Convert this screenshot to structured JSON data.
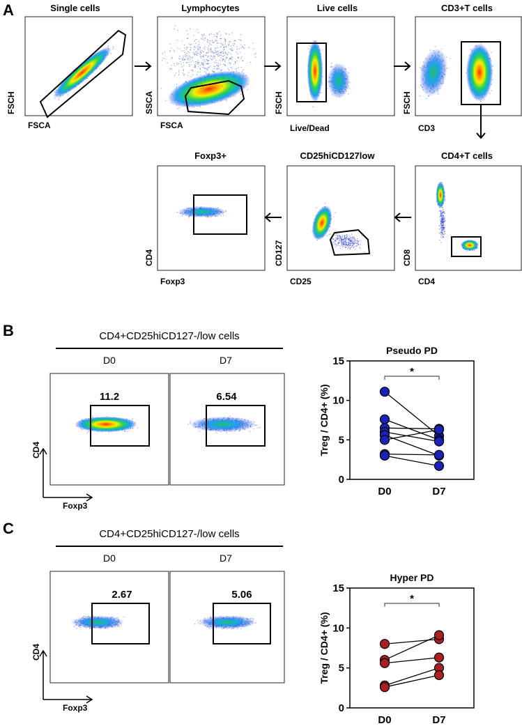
{
  "panel_a": {
    "letter": "A",
    "plots": [
      {
        "key": "single",
        "title": "Single cells",
        "xlabel": "FSCA",
        "ylabel": "FSCH"
      },
      {
        "key": "lymph",
        "title": "Lymphocytes",
        "xlabel": "FSCA",
        "ylabel": "SSCA"
      },
      {
        "key": "live",
        "title": "Live cells",
        "xlabel": "Live/Dead",
        "ylabel": "FSCH"
      },
      {
        "key": "cd3",
        "title": "CD3+T cells",
        "xlabel": "CD3",
        "ylabel": "FSCH"
      },
      {
        "key": "foxp3",
        "title": "Foxp3+",
        "xlabel": "Foxp3",
        "ylabel": "CD4"
      },
      {
        "key": "cd25",
        "title": "CD25hiCD127low",
        "xlabel": "CD25",
        "ylabel": "CD127"
      },
      {
        "key": "cd4",
        "title": "CD4+T cells",
        "xlabel": "CD4",
        "ylabel": "CD8"
      }
    ]
  },
  "panel_b": {
    "letter": "B",
    "group_title": "CD4+CD25hiCD127-/low  cells",
    "day0_label": "D0",
    "day7_label": "D7",
    "pct_d0": "11.2",
    "pct_d7": "6.54",
    "xlabel": "Foxp3",
    "ylabel": "CD4"
  },
  "panel_c": {
    "letter": "C",
    "group_title": "CD4+CD25hiCD127-/low  cells",
    "day0_label": "D0",
    "day7_label": "D7",
    "pct_d0": "2.67",
    "pct_d7": "5.06",
    "xlabel": "Foxp3",
    "ylabel": "CD4"
  },
  "chart_data": [
    {
      "type": "scatter",
      "title": "Pseudo PD",
      "ylabel": "Treg / CD4+ (%)",
      "categories": [
        "D0",
        "D7"
      ],
      "ylim": [
        0,
        15
      ],
      "yticks": [
        0,
        5,
        10,
        15
      ],
      "significance": "*",
      "color": "#1c22b8",
      "pairs": [
        [
          11.1,
          5.5
        ],
        [
          7.6,
          5.0
        ],
        [
          6.5,
          6.4
        ],
        [
          6.0,
          4.8
        ],
        [
          5.6,
          3.0
        ],
        [
          5.0,
          6.3
        ],
        [
          3.2,
          3.1
        ],
        [
          3.0,
          1.7
        ]
      ]
    },
    {
      "type": "scatter",
      "title": "Hyper PD",
      "ylabel": "Treg / CD4+ (%)",
      "categories": [
        "D0",
        "D7"
      ],
      "ylim": [
        0,
        15
      ],
      "yticks": [
        0,
        5,
        10,
        15
      ],
      "significance": "*",
      "color": "#a82020",
      "pairs": [
        [
          8.0,
          8.6
        ],
        [
          6.0,
          9.1
        ],
        [
          5.6,
          6.3
        ],
        [
          2.8,
          5.0
        ],
        [
          2.6,
          4.1
        ]
      ]
    }
  ]
}
